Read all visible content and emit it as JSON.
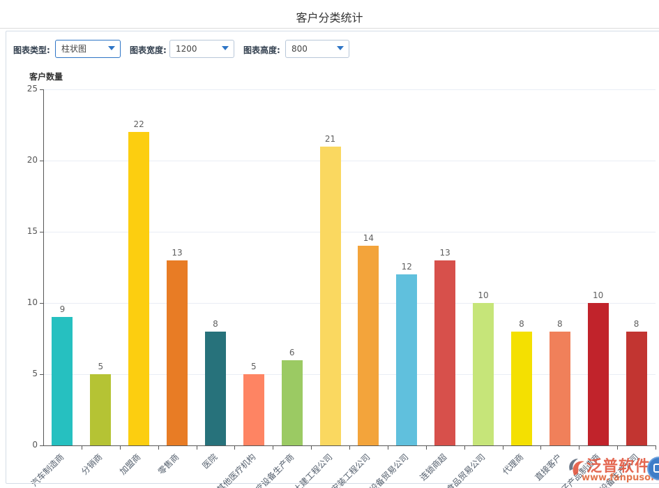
{
  "page": {
    "title": "客户分类统计"
  },
  "toolbar": {
    "type_label": "图表类型:",
    "type_value": "柱状图",
    "width_label": "图表宽度:",
    "width_value": "1200",
    "height_label": "图表高度:",
    "height_value": "800"
  },
  "chart_data": {
    "type": "bar",
    "title": "客户分类统计",
    "xlabel": "",
    "ylabel": "客户数量",
    "ylim": [
      0,
      25
    ],
    "yticks": [
      0,
      5,
      10,
      15,
      20,
      25
    ],
    "grid": true,
    "legend": "none",
    "categories": [
      "汽车制造商",
      "分销商",
      "加盟商",
      "零售商",
      "医院",
      "其他医疗机构",
      "医疗设备生产商",
      "土建工程公司",
      "安装工程公司",
      "工程设备贸易公司",
      "连锁商超",
      "食品贸易公司",
      "代理商",
      "直接客户",
      "电子产品制造商",
      "电子设备生产公司"
    ],
    "values": [
      9,
      5,
      22,
      13,
      8,
      5,
      6,
      21,
      14,
      12,
      13,
      10,
      8,
      8,
      10,
      8
    ],
    "bar_colors": [
      "#26c0c0",
      "#b5c334",
      "#fcce10",
      "#e87c25",
      "#27727b",
      "#fe8463",
      "#9bca63",
      "#fad860",
      "#f3a43b",
      "#60c0dd",
      "#d7504b",
      "#c6e579",
      "#f4e001",
      "#f0805a",
      "#c1232b",
      "#c23531"
    ]
  },
  "theme": {
    "accent_blue": "#2e75c6",
    "watermark_red": "#e2573f",
    "watermark_orange": "#e0683e"
  },
  "watermark": {
    "brand": "泛普软件",
    "url": "www.fanpusoft.com"
  }
}
